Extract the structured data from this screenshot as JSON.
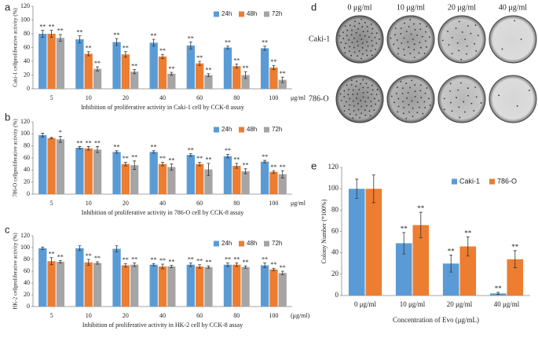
{
  "chart_data": [
    {
      "type": "bar",
      "panel": "a",
      "ylabel": "Caki-1 cellproliferative activity (%)",
      "xlabel": "Inhibition of proliferative activity in Caki-1 cell by CCK-8 assay",
      "unit_label": "μg/ml",
      "categories": [
        "5",
        "10",
        "20",
        "40",
        "60",
        "80",
        "100"
      ],
      "ylim": [
        0,
        120
      ],
      "yticks": [
        0,
        20,
        40,
        60,
        80,
        100,
        120
      ],
      "legend": "top-right",
      "series": [
        {
          "name": "24h",
          "color": "#5b9bd5",
          "values": [
            80,
            72,
            68,
            67,
            63,
            60,
            59
          ],
          "errors": [
            5,
            5,
            5,
            5,
            5,
            2,
            3
          ],
          "labels": [
            "**",
            "**",
            "**",
            "**",
            "**",
            "**",
            "**"
          ]
        },
        {
          "name": "48h",
          "color": "#ed7d31",
          "values": [
            80,
            51,
            50,
            47,
            37,
            33,
            31
          ],
          "errors": [
            5,
            3,
            4,
            3,
            3,
            3,
            3
          ],
          "labels": [
            "**",
            "**",
            "**",
            "**",
            "**",
            "**",
            "**"
          ]
        },
        {
          "name": "72h",
          "color": "#a5a5a5",
          "values": [
            74,
            29,
            25,
            22,
            20,
            20,
            13
          ],
          "errors": [
            5,
            3,
            3,
            2,
            2,
            5,
            4
          ],
          "labels": [
            "**",
            "**",
            "**",
            "**",
            "**",
            "**",
            "**"
          ]
        }
      ]
    },
    {
      "type": "bar",
      "panel": "b",
      "ylabel": "786-O cellproliferative activity (%)",
      "xlabel": "Inhibition of proliferative activity in 786-O cell by CCK-8 assay",
      "unit_label": "μg/ml",
      "categories": [
        "5",
        "10",
        "20",
        "40",
        "60",
        "80",
        "100"
      ],
      "ylim": [
        0,
        120
      ],
      "yticks": [
        0,
        20,
        40,
        60,
        80,
        100,
        120
      ],
      "legend": "top-right",
      "series": [
        {
          "name": "24h",
          "color": "#5b9bd5",
          "values": [
            98,
            77,
            70,
            70,
            65,
            63,
            54
          ],
          "errors": [
            3,
            2,
            2,
            2,
            2,
            3,
            2
          ],
          "labels": [
            null,
            "**",
            "**",
            "**",
            "**",
            "**",
            "**"
          ]
        },
        {
          "name": "48h",
          "color": "#ed7d31",
          "values": [
            93,
            76,
            50,
            50,
            50,
            47,
            37
          ],
          "errors": [
            1,
            3,
            3,
            3,
            3,
            4,
            2
          ],
          "labels": [
            null,
            "**",
            "**",
            "**",
            "**",
            "**",
            "**"
          ]
        },
        {
          "name": "72h",
          "color": "#a5a5a5",
          "values": [
            91,
            74,
            48,
            45,
            41,
            38,
            33
          ],
          "errors": [
            5,
            5,
            7,
            5,
            10,
            4,
            6
          ],
          "labels": [
            "*",
            "**",
            "**",
            "**",
            "**",
            "**",
            "**"
          ]
        }
      ]
    },
    {
      "type": "bar",
      "panel": "c",
      "ylabel": "HK-2 cellproliferative activity (%)",
      "xlabel": "Inhibition of proliferative activity in HK-2 cell by CCK-8 assay",
      "unit_label": "(μg/ml)",
      "categories": [
        "5",
        "10",
        "20",
        "40",
        "60",
        "80",
        "100"
      ],
      "ylim": [
        0,
        120
      ],
      "yticks": [
        0,
        20,
        40,
        60,
        80,
        100,
        120
      ],
      "legend": "top-right",
      "series": [
        {
          "name": "24h",
          "color": "#5b9bd5",
          "values": [
            99,
            99,
            98,
            71,
            71,
            71,
            70
          ],
          "errors": [
            2,
            4,
            5,
            2,
            3,
            3,
            4
          ],
          "labels": [
            null,
            null,
            null,
            "**",
            "**",
            "**",
            "**"
          ]
        },
        {
          "name": "48h",
          "color": "#ed7d31",
          "values": [
            77,
            75,
            70,
            68,
            68,
            71,
            63
          ],
          "errors": [
            6,
            5,
            3,
            4,
            3,
            3,
            2
          ],
          "labels": [
            "**",
            "**",
            "**",
            "**",
            "**",
            "**",
            "**"
          ]
        },
        {
          "name": "72h",
          "color": "#a5a5a5",
          "values": [
            76,
            74,
            71,
            68,
            67,
            67,
            57
          ],
          "errors": [
            2,
            2,
            3,
            2,
            2,
            2,
            3
          ],
          "labels": [
            "**",
            "**",
            "**",
            "**",
            "**",
            "**",
            "**"
          ]
        }
      ]
    },
    {
      "type": "bar",
      "panel": "e",
      "ylabel": "Colony Number (*100%)",
      "xlabel": "Concentration of Evo (μg/mL)",
      "categories": [
        "0 μg/ml",
        "10 μg/ml",
        "20 μg/ml",
        "40 μg/ml"
      ],
      "ylim": [
        0,
        120
      ],
      "yticks": [
        0,
        20,
        40,
        60,
        80,
        100,
        120
      ],
      "legend": "top-right",
      "series": [
        {
          "name": "Caki-1",
          "color": "#5b9bd5",
          "values": [
            100,
            49,
            30,
            2
          ],
          "errors": [
            9,
            10,
            8,
            1
          ],
          "labels": [
            null,
            "**",
            "**",
            "**"
          ]
        },
        {
          "name": "786-O",
          "color": "#ed7d31",
          "values": [
            100,
            66,
            46,
            34
          ],
          "errors": [
            13,
            12,
            9,
            8
          ],
          "labels": [
            null,
            "**",
            "**",
            "**"
          ]
        }
      ]
    }
  ],
  "plates": {
    "panel": "d",
    "columns": [
      "0 μg/ml",
      "10 μg/ml",
      "20 μg/ml",
      "40 μg/ml"
    ],
    "rows": [
      "Caki-1",
      "786-O"
    ]
  }
}
